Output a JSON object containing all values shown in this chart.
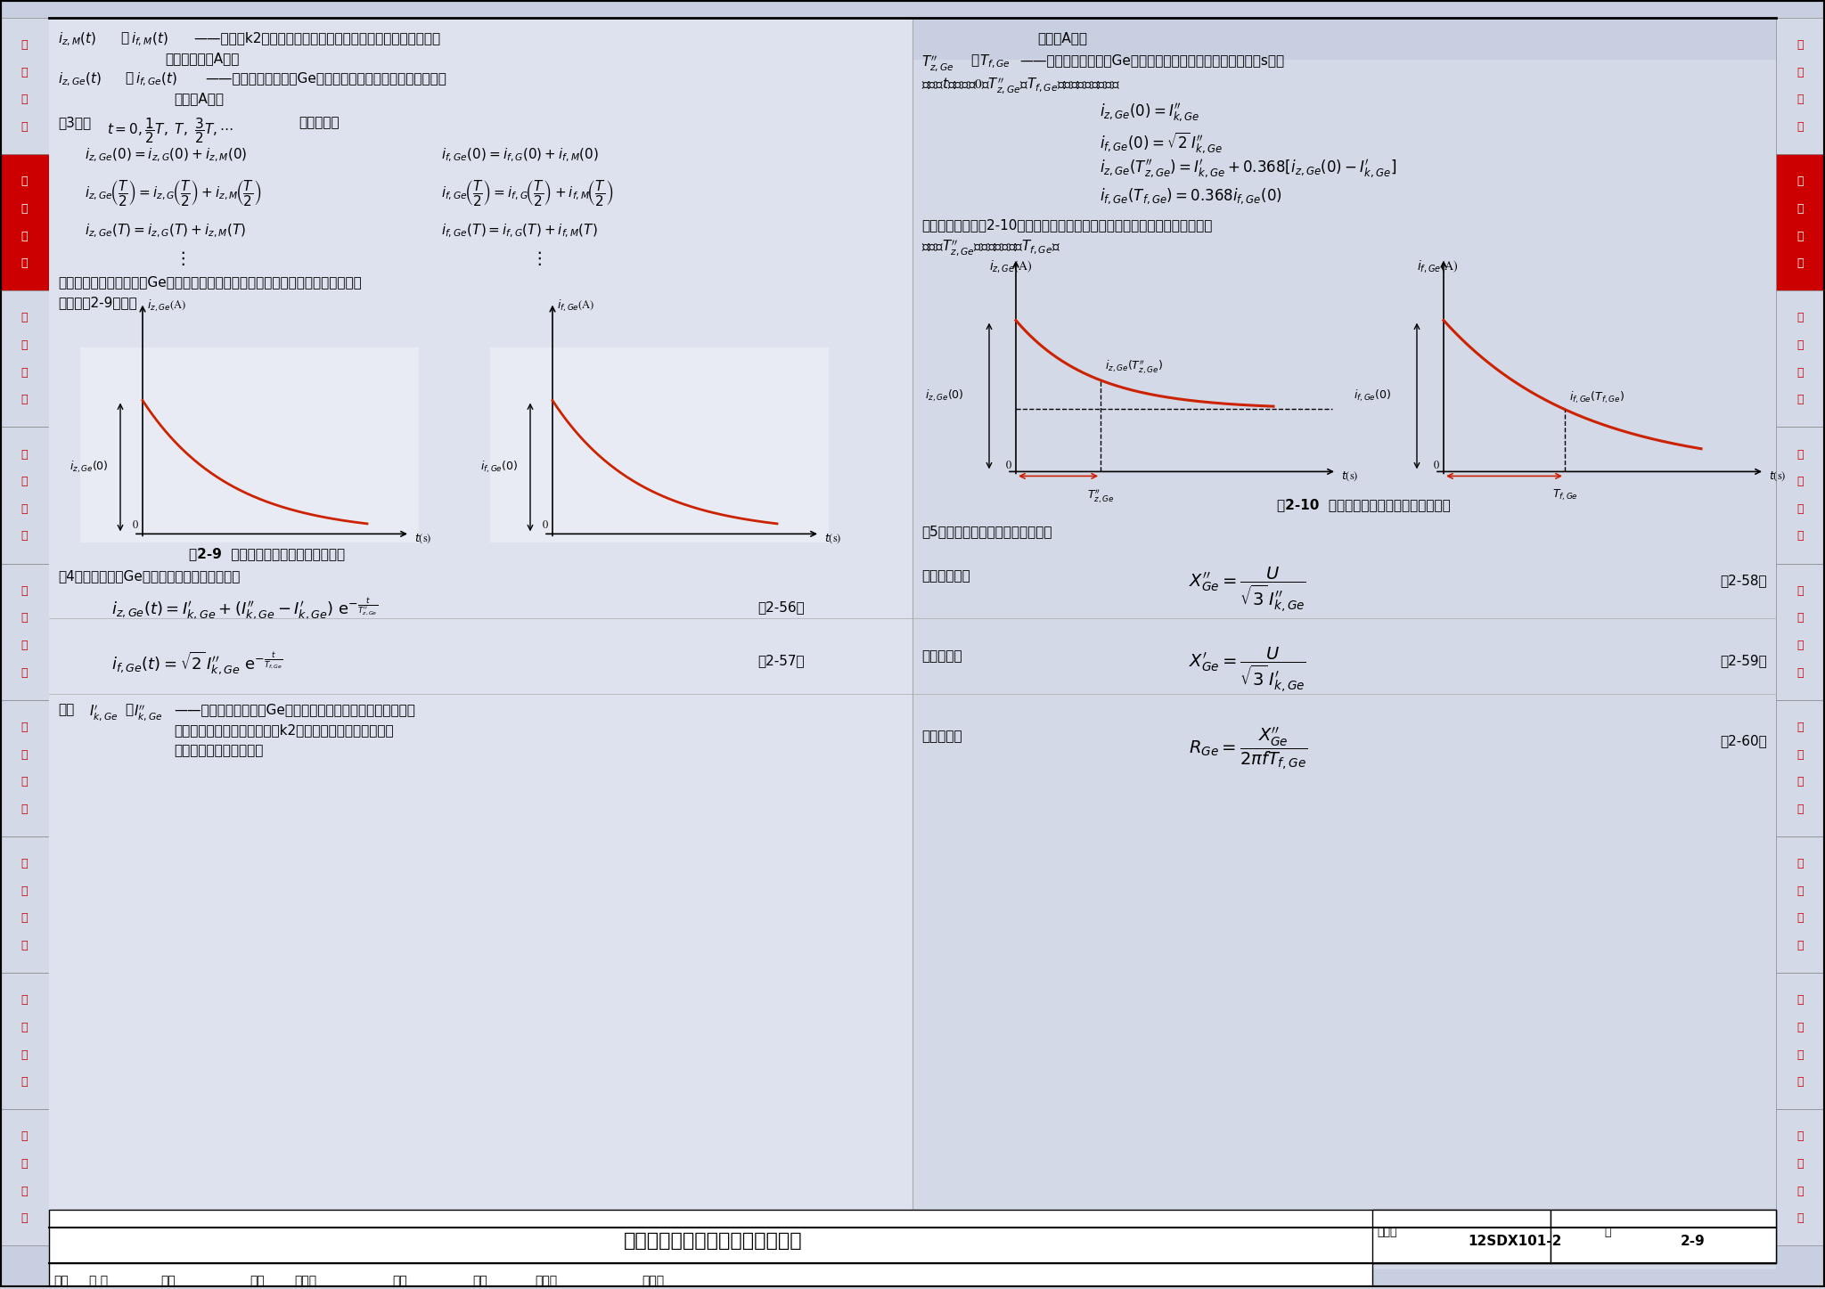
{
  "page_bg": "#c8cfe0",
  "content_bg": "#d4d9e8",
  "white": "#ffffff",
  "red": "#cc0000",
  "dark_red": "#cc0000",
  "black": "#000000",
  "sidebar_items": [
    "负荷计算",
    "短路计算",
    "继电保护",
    "线缆截面",
    "常用设备",
    "照明计算",
    "防雷接地",
    "弱电计算",
    "工程示例"
  ],
  "sidebar_highlight": 1,
  "title": "柴油发电机供电系统短路电流计算",
  "figure_number": "12SDX101-2",
  "page_number": "2-9",
  "bottom_row": [
    "审核",
    "万 力",
    "巨力",
    "校对",
    "杨之俊",
    "物流",
    "设计",
    "汪兴跃",
    "汪兴跃",
    "页",
    "2-9"
  ]
}
